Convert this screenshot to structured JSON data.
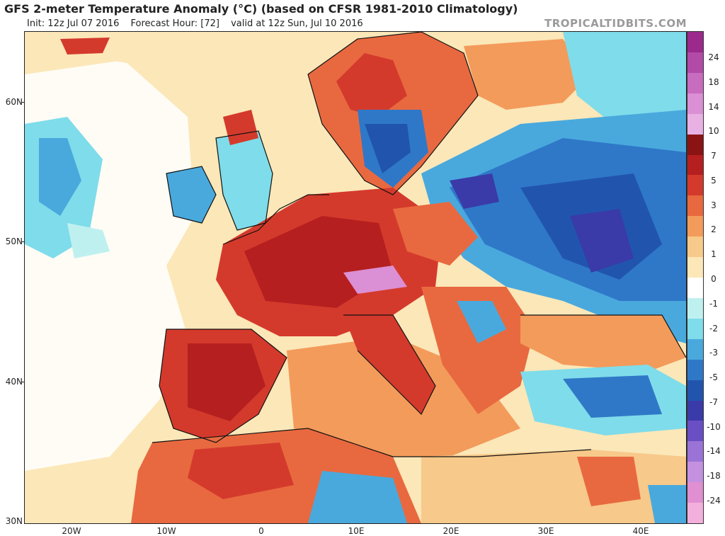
{
  "header": {
    "title": "GFS 2-meter Temperature Anomaly (°C) (based on CFSR 1981-2010 Climatology)",
    "init": "Init: 12z Jul 07 2016",
    "forecast_hour": "Forecast Hour: [72]",
    "valid": "valid at 12z Sun, Jul 10 2016",
    "brand": "TROPICALTIDBITS.COM"
  },
  "map": {
    "lat_labels": [
      "60N",
      "50N",
      "40N",
      "30N"
    ],
    "lon_labels": [
      "20W",
      "10W",
      "0",
      "10E",
      "20E",
      "30E",
      "40E"
    ]
  },
  "colorbar": {
    "labels": [
      "24",
      "18",
      "14",
      "10",
      "7",
      "5",
      "3",
      "2",
      "1",
      "0",
      "-1",
      "-2",
      "-3",
      "-5",
      "-7",
      "-10",
      "-14",
      "-18",
      "-24"
    ],
    "colors": [
      "#9b2a8c",
      "#b24aa8",
      "#c86cc0",
      "#db8fd4",
      "#e9b0e4",
      "#8a1414",
      "#b51f1f",
      "#d43a2c",
      "#e8693f",
      "#f39b5b",
      "#f7c98a",
      "#fbe7b8",
      "#ffffff",
      "#bff0f0",
      "#7fdcea",
      "#49a9dd",
      "#2f78c8",
      "#2155ad",
      "#3a3aa8",
      "#6a4fc4",
      "#9b73d6",
      "#c391e0",
      "#e08fd0",
      "#f3b0dc"
    ]
  },
  "legend_colors": {
    "ocean_neutral": "#fbe7b8",
    "warm": "#d43a2c",
    "hot": "#b51f1f",
    "cool": "#49a9dd",
    "cold": "#2155ad",
    "very_cold": "#3a3aa8"
  }
}
